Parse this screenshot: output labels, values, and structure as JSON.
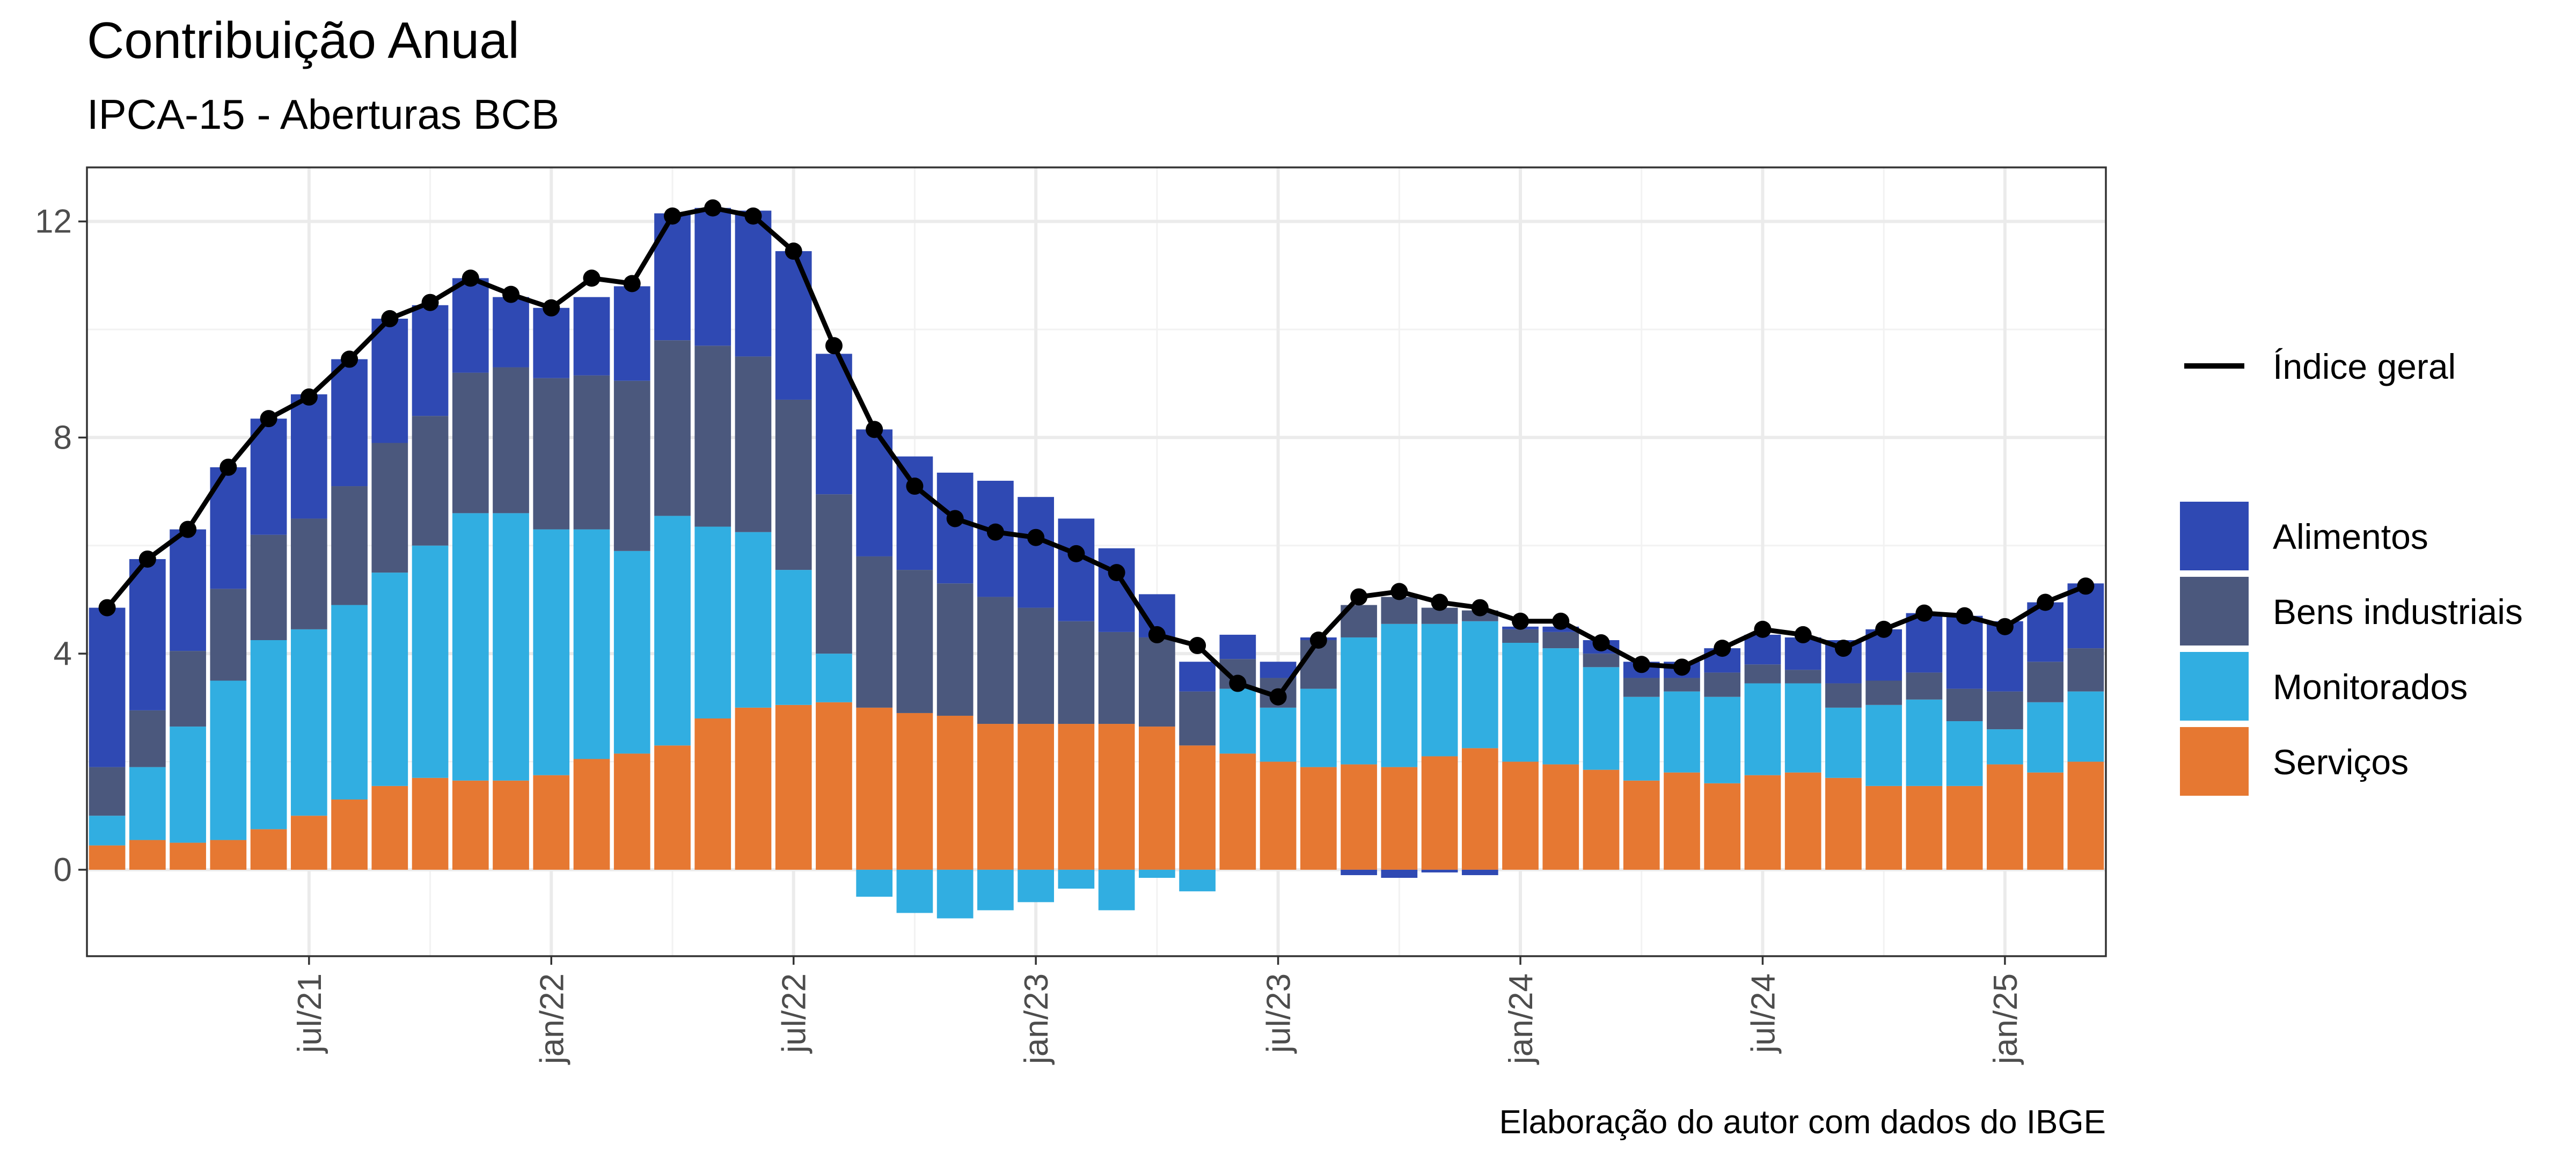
{
  "chart_data": {
    "type": "bar",
    "title": "Contribuição Anual",
    "subtitle": "IPCA-15 - Aberturas BCB",
    "caption": "Elaboração do autor com dados do IBGE",
    "xlabel": "",
    "ylabel": "",
    "ylim": [
      -1.6,
      13.0
    ],
    "yticks": [
      0,
      4,
      8,
      12
    ],
    "x_tick_labels": [
      "jul/21",
      "jan/22",
      "jul/22",
      "jan/23",
      "jul/23",
      "jan/24",
      "jul/24",
      "jan/25"
    ],
    "x_tick_index": [
      5,
      11,
      17,
      23,
      29,
      35,
      41,
      47
    ],
    "x": [
      "2021-02",
      "2021-03",
      "2021-04",
      "2021-05",
      "2021-06",
      "2021-07",
      "2021-08",
      "2021-09",
      "2021-10",
      "2021-11",
      "2021-12",
      "2022-01",
      "2022-02",
      "2022-03",
      "2022-04",
      "2022-05",
      "2022-06",
      "2022-07",
      "2022-08",
      "2022-09",
      "2022-10",
      "2022-11",
      "2022-12",
      "2023-01",
      "2023-02",
      "2023-03",
      "2023-04",
      "2023-05",
      "2023-06",
      "2023-07",
      "2023-08",
      "2023-09",
      "2023-10",
      "2023-11",
      "2023-12",
      "2024-01",
      "2024-02",
      "2024-03",
      "2024-04",
      "2024-05",
      "2024-06",
      "2024-07",
      "2024-08",
      "2024-09",
      "2024-10",
      "2024-11",
      "2024-12",
      "2025-01",
      "2025-02",
      "2025-03"
    ],
    "grid": true,
    "legend_position": "right",
    "series": [
      {
        "name": "Serviços",
        "color": "#E67832",
        "values": [
          0.45,
          0.55,
          0.5,
          0.55,
          0.75,
          1.0,
          1.3,
          1.55,
          1.7,
          1.65,
          1.65,
          1.75,
          2.05,
          2.15,
          2.3,
          2.8,
          3.0,
          3.05,
          3.1,
          3.0,
          2.9,
          2.85,
          2.7,
          2.7,
          2.7,
          2.7,
          2.65,
          2.3,
          2.15,
          2.0,
          1.9,
          1.95,
          1.9,
          2.1,
          2.25,
          2.0,
          1.95,
          1.85,
          1.65,
          1.8,
          1.6,
          1.75,
          1.8,
          1.7,
          1.55,
          1.55,
          1.55,
          1.95,
          1.8,
          2.0
        ]
      },
      {
        "name": "Monitorados",
        "color": "#31AEE1",
        "values": [
          0.55,
          1.35,
          2.15,
          2.95,
          3.5,
          3.45,
          3.6,
          3.95,
          4.3,
          4.95,
          4.95,
          4.55,
          4.25,
          3.75,
          4.25,
          3.55,
          3.25,
          2.5,
          0.9,
          -0.5,
          -0.8,
          -0.9,
          -0.75,
          -0.6,
          -0.35,
          -0.75,
          -0.15,
          -0.4,
          1.2,
          1.0,
          1.45,
          2.35,
          2.65,
          2.45,
          2.35,
          2.2,
          2.15,
          1.9,
          1.55,
          1.5,
          1.6,
          1.7,
          1.65,
          1.3,
          1.5,
          1.6,
          1.2,
          0.65,
          1.3,
          1.3
        ]
      },
      {
        "name": "Bens industriais",
        "color": "#4B587D",
        "values": [
          0.9,
          1.05,
          1.4,
          1.7,
          1.95,
          2.05,
          2.2,
          2.4,
          2.4,
          2.6,
          2.7,
          2.8,
          2.85,
          3.15,
          3.25,
          3.35,
          3.25,
          3.15,
          2.95,
          2.8,
          2.65,
          2.45,
          2.35,
          2.15,
          1.9,
          1.7,
          1.65,
          1.0,
          0.55,
          0.55,
          0.9,
          0.6,
          0.5,
          0.3,
          0.2,
          0.25,
          0.3,
          0.25,
          0.35,
          0.25,
          0.45,
          0.35,
          0.25,
          0.45,
          0.45,
          0.5,
          0.6,
          0.7,
          0.75,
          0.8
        ]
      },
      {
        "name": "Alimentos",
        "color": "#2F49B3",
        "values": [
          2.95,
          2.8,
          2.25,
          2.25,
          2.15,
          2.3,
          2.35,
          2.3,
          2.05,
          1.75,
          1.3,
          1.3,
          1.45,
          1.75,
          2.35,
          2.55,
          2.7,
          2.75,
          2.6,
          2.35,
          2.1,
          2.05,
          2.15,
          2.05,
          1.9,
          1.55,
          0.8,
          0.55,
          0.45,
          0.3,
          0.05,
          -0.1,
          -0.15,
          -0.05,
          -0.1,
          0.05,
          0.1,
          0.25,
          0.3,
          0.3,
          0.45,
          0.55,
          0.6,
          0.8,
          0.95,
          1.1,
          1.35,
          1.3,
          1.1,
          1.2
        ]
      },
      {
        "name": "Índice geral",
        "color": "#000000",
        "kind": "line",
        "values": [
          4.85,
          5.75,
          6.3,
          7.45,
          8.35,
          8.75,
          9.45,
          10.2,
          10.5,
          10.95,
          10.65,
          10.4,
          10.95,
          10.85,
          12.1,
          12.25,
          12.1,
          11.45,
          9.7,
          8.15,
          7.1,
          6.5,
          6.25,
          6.15,
          5.85,
          5.5,
          4.35,
          4.15,
          3.45,
          3.2,
          4.25,
          5.05,
          5.15,
          4.95,
          4.85,
          4.6,
          4.6,
          4.2,
          3.8,
          3.75,
          4.1,
          4.45,
          4.35,
          4.1,
          4.45,
          4.75,
          4.7,
          4.5,
          4.95,
          5.25
        ]
      }
    ]
  }
}
